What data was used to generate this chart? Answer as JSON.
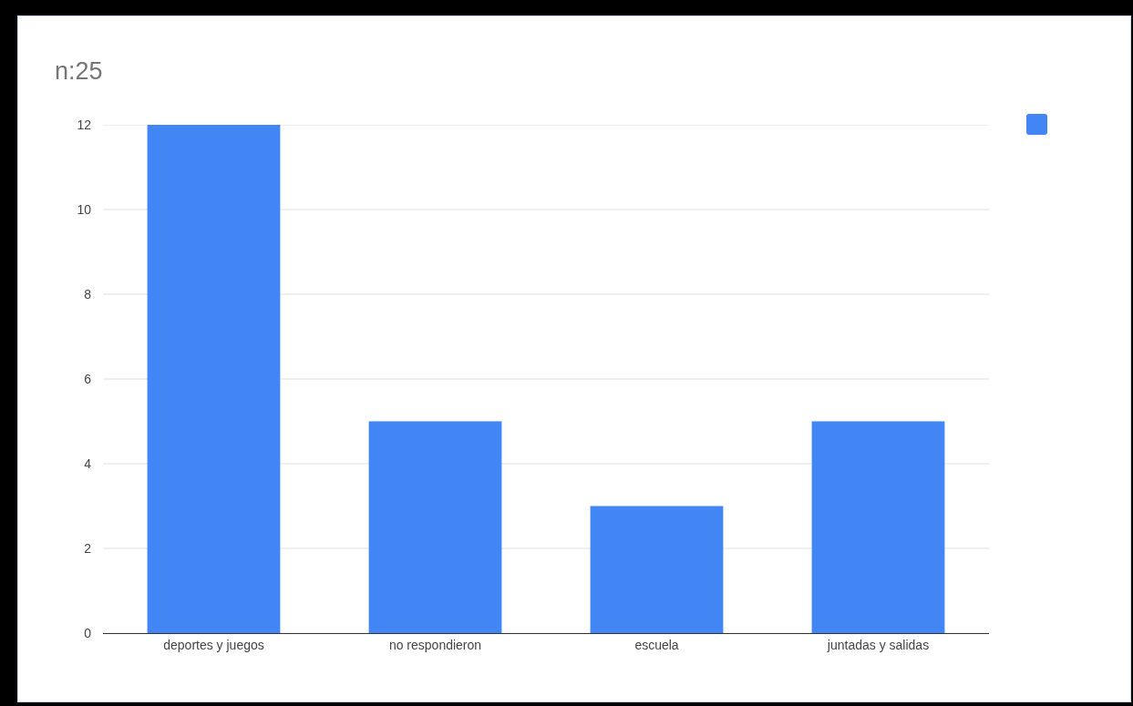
{
  "chart_data": {
    "type": "bar",
    "title": "n:25",
    "categories": [
      "deportes y juegos",
      "no respondieron",
      "escuela",
      "juntadas y salidas"
    ],
    "values": [
      12,
      5,
      3,
      5
    ],
    "color": "#4285f4",
    "ylim": [
      0,
      12
    ],
    "yticks": [
      0,
      2,
      4,
      6,
      8,
      10,
      12
    ],
    "grid": "y"
  }
}
